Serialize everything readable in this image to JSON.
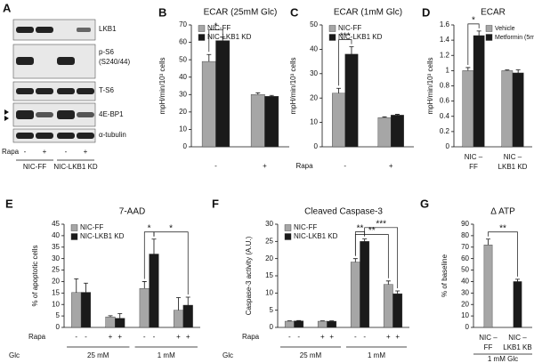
{
  "blot": {
    "panel": "A",
    "rows": [
      "LKB1",
      "p-S6",
      "(S240/44)",
      "T-S6",
      "4E-BP1",
      "α-tubulin"
    ],
    "rapa_label": "Rapa",
    "rapa": [
      "-",
      "+",
      "-",
      "+"
    ],
    "groups": [
      "NIC-FF",
      "NIC-LKB1 KD"
    ]
  },
  "chart_data": [
    {
      "type": "bar",
      "panel": "B",
      "title": "ECAR (25mM Glc)",
      "ylabel": "mpH/min/10³ cells",
      "categories": [
        "-",
        "+"
      ],
      "series": [
        {
          "name": "NIC-FF",
          "color": "#a6a6a6",
          "values": [
            49,
            30
          ],
          "errors": [
            4,
            1
          ]
        },
        {
          "name": "NIC-LKB1 KD",
          "color": "#1a1a1a",
          "values": [
            61,
            29
          ],
          "errors": [
            2,
            0.5
          ]
        }
      ],
      "ylim": [
        0,
        70
      ],
      "yticks": [
        0,
        10,
        20,
        30,
        40,
        50,
        60,
        70
      ],
      "legend": "upper left",
      "annotations": [
        "*"
      ]
    },
    {
      "type": "bar",
      "panel": "C",
      "title": "ECAR (1mM Glc)",
      "ylabel": "mpH/min/10³ cells",
      "xlabel": "Rapa",
      "categories": [
        "-",
        "+"
      ],
      "series": [
        {
          "name": "NIC-FF",
          "color": "#a6a6a6",
          "values": [
            22,
            12
          ],
          "errors": [
            2,
            0.3
          ]
        },
        {
          "name": "NIC-LKB1 KD",
          "color": "#1a1a1a",
          "values": [
            38,
            13
          ],
          "errors": [
            3,
            0.3
          ]
        }
      ],
      "ylim": [
        0,
        50
      ],
      "yticks": [
        0,
        10,
        20,
        30,
        40,
        50
      ],
      "legend": "upper left",
      "annotations": [
        "***"
      ]
    },
    {
      "type": "bar",
      "panel": "D",
      "title": "ECAR",
      "ylabel": "mpH/min/10³ cells",
      "categories": [
        [
          "NIC –",
          "FF"
        ],
        [
          "NIC –",
          "LKB1 KD"
        ]
      ],
      "series": [
        {
          "name": "Vehicle",
          "color": "#a6a6a6",
          "values": [
            1.0,
            1.0
          ],
          "errors": [
            0.04,
            0.01
          ]
        },
        {
          "name": "Metformin (5mM)",
          "color": "#1a1a1a",
          "values": [
            1.46,
            0.97
          ],
          "errors": [
            0.06,
            0.04
          ]
        }
      ],
      "ylim": [
        0,
        1.6
      ],
      "yticks": [
        0,
        0.2,
        0.4,
        0.6,
        0.8,
        1,
        1.2,
        1.4,
        1.6
      ],
      "legend": "upper right",
      "annotations": [
        "*"
      ]
    },
    {
      "type": "bar",
      "panel": "E",
      "title": "7-AAD",
      "ylabel": "% of apoptotic cells",
      "rapa_label": "Rapa",
      "rapa": [
        "-",
        "-",
        "+",
        "+",
        "-",
        "-",
        "+",
        "+"
      ],
      "glc_label": "Glc",
      "groups": [
        "25 mM",
        "1 mM"
      ],
      "series": [
        {
          "name": "NIC-FF",
          "color": "#a6a6a6",
          "values": [
            15.2,
            4.6,
            17,
            7.5
          ],
          "errors": [
            6,
            0.5,
            3,
            5.5
          ]
        },
        {
          "name": "NIC-LKB1 KD",
          "color": "#1a1a1a",
          "values": [
            15.3,
            4,
            32,
            9.7
          ],
          "errors": [
            4,
            2,
            6.5,
            3.5
          ]
        }
      ],
      "ylim": [
        0,
        45
      ],
      "yticks": [
        0,
        5,
        10,
        15,
        20,
        25,
        30,
        35,
        40,
        45
      ],
      "legend": "upper left",
      "annotations": [
        "*",
        "*"
      ]
    },
    {
      "type": "bar",
      "panel": "F",
      "title": "Cleaved Caspase-3",
      "ylabel": "Caspase-3 activity (A.U.)",
      "rapa_label": "Rapa",
      "rapa": [
        "-",
        "-",
        "+",
        "+",
        "-",
        "-",
        "+",
        "+"
      ],
      "glc_label": "Glc",
      "groups": [
        "25 mM",
        "1 mM"
      ],
      "series": [
        {
          "name": "NIC-FF",
          "color": "#a6a6a6",
          "values": [
            1.8,
            1.8,
            19,
            12.5
          ],
          "errors": [
            0.1,
            0.1,
            1,
            1
          ]
        },
        {
          "name": "NIC-LKB1 KD",
          "color": "#1a1a1a",
          "values": [
            1.9,
            1.8,
            25,
            9.8
          ],
          "errors": [
            0.1,
            0.1,
            0.7,
            0.8
          ]
        }
      ],
      "ylim": [
        0,
        30
      ],
      "yticks": [
        0,
        5,
        10,
        15,
        20,
        25,
        30
      ],
      "legend": "upper left",
      "annotations": [
        "**",
        "**",
        "***"
      ]
    },
    {
      "type": "bar",
      "panel": "G",
      "title": "Δ ATP",
      "ylabel": "% of baseline",
      "xlabel": "1 mM Glc",
      "categories": [
        [
          "NIC –",
          "FF"
        ],
        [
          "NIC –",
          "LKB1 KB"
        ]
      ],
      "values": [
        72,
        40
      ],
      "errors": [
        5,
        2
      ],
      "colors": [
        "#a6a6a6",
        "#1a1a1a"
      ],
      "ylim": [
        0,
        90
      ],
      "yticks": [
        0,
        10,
        20,
        30,
        40,
        50,
        60,
        70,
        80,
        90
      ],
      "annotations": [
        "**"
      ]
    }
  ]
}
